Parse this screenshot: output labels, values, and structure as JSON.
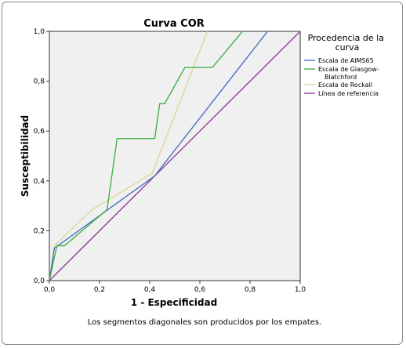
{
  "chart_data": {
    "type": "line",
    "title": "Curva COR",
    "xlabel": "1 - Especificidad",
    "ylabel": "Susceptibilidad",
    "xlim": [
      0,
      1
    ],
    "ylim": [
      0,
      1
    ],
    "xticks": [
      "0,0",
      "0,2",
      "0,4",
      "0,6",
      "0,8",
      "1,0"
    ],
    "yticks": [
      "0,0",
      "0,2",
      "0,4",
      "0,6",
      "0,8",
      "1,0"
    ],
    "grid": false,
    "legend_title": "Procedencia de la curva",
    "legend_position": "right",
    "footnote": "Los segmentos diagonales son producidos por los empates.",
    "series": [
      {
        "name": "Escala de AIMS65",
        "color": "#4a6fbf",
        "points": [
          [
            0,
            0
          ],
          [
            0.02,
            0.13
          ],
          [
            0.42,
            0.42
          ],
          [
            0.87,
            1.0
          ]
        ]
      },
      {
        "name": "Escala de Glasgow-Blatchford",
        "color": "#45b049",
        "points": [
          [
            0,
            0
          ],
          [
            0.03,
            0.14
          ],
          [
            0.06,
            0.14
          ],
          [
            0.23,
            0.285
          ],
          [
            0.27,
            0.57
          ],
          [
            0.42,
            0.57
          ],
          [
            0.44,
            0.71
          ],
          [
            0.46,
            0.71
          ],
          [
            0.54,
            0.855
          ],
          [
            0.65,
            0.855
          ],
          [
            0.77,
            1.0
          ]
        ]
      },
      {
        "name": "Escala de Rockall",
        "color": "#d8d8a0",
        "points": [
          [
            0,
            0
          ],
          [
            0.02,
            0.14
          ],
          [
            0.17,
            0.285
          ],
          [
            0.41,
            0.43
          ],
          [
            0.63,
            1.0
          ]
        ]
      },
      {
        "name": "Línea de referencia",
        "color": "#8f3f9a",
        "points": [
          [
            0,
            0
          ],
          [
            1,
            1
          ]
        ]
      }
    ]
  }
}
